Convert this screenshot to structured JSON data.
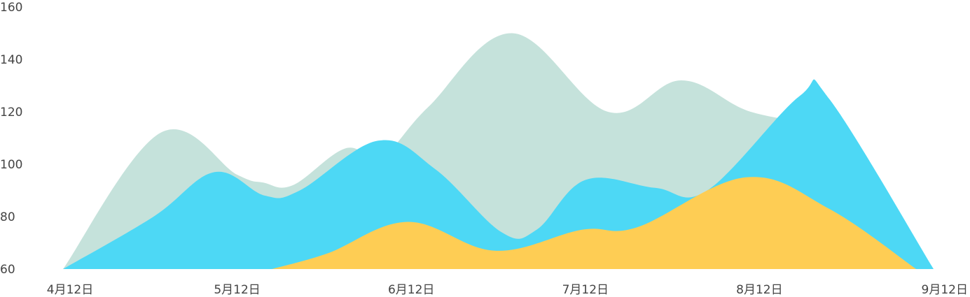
{
  "chart_data": {
    "type": "area",
    "title": "",
    "xlabel": "",
    "ylabel": "",
    "ylim": [
      60,
      160
    ],
    "xlim": [
      "4月12日",
      "9月12日"
    ],
    "grid": false,
    "legend": "none",
    "y_ticks": [
      60,
      80,
      100,
      120,
      140,
      160
    ],
    "y_tick_labels": [
      "60",
      "80",
      "100",
      "120",
      "140",
      "160"
    ],
    "x_tick_labels": [
      "4月12日",
      "5月12日",
      "6月12日",
      "7月12日",
      "8月12日",
      "9月12日"
    ],
    "series": [
      {
        "color": "#c5e2db",
        "x": [
          0,
          0.56,
          1.0,
          1.15,
          1.32,
          1.62,
          1.83,
          2.1,
          2.58,
          3.13,
          3.55,
          3.95,
          4.4
        ],
        "values": [
          60,
          112,
          96,
          93,
          92,
          106,
          103,
          122,
          150,
          120,
          132,
          120,
          115
        ]
      },
      {
        "color": "#4dd8f5",
        "x": [
          0,
          0.52,
          0.87,
          1.16,
          1.36,
          1.81,
          2.14,
          2.52,
          2.72,
          3.0,
          3.4,
          3.7,
          4.23,
          4.4,
          5.0
        ],
        "values": [
          60,
          80,
          97,
          88,
          90,
          109,
          98,
          74,
          75,
          94,
          91,
          90,
          126,
          125,
          60
        ]
      },
      {
        "color": "#fecd54",
        "x": [
          1.2,
          1.52,
          1.98,
          2.48,
          2.98,
          3.3,
          3.92,
          4.4,
          4.9
        ],
        "values": [
          60,
          66,
          78,
          67,
          75,
          76,
          95,
          83,
          60
        ]
      }
    ]
  }
}
